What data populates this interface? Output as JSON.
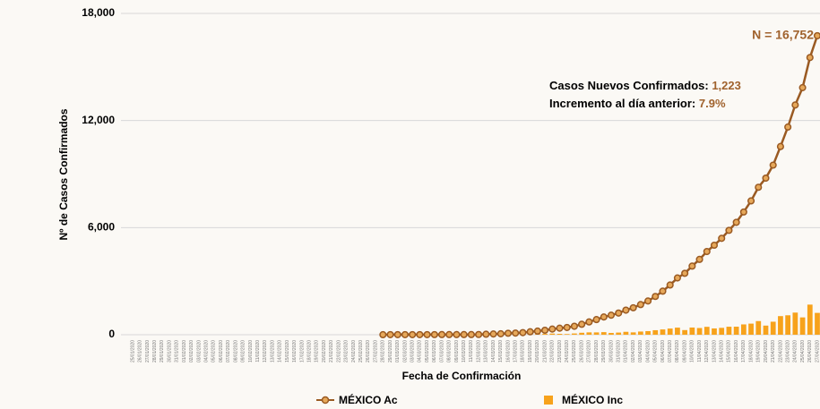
{
  "chart_data": {
    "type": "bar-line",
    "y_label": "Nº de Casos Confirmados",
    "x_label": "Fecha de Confirmación",
    "annotations": {
      "total": "N = 16,752",
      "new_label": "Casos Nuevos Confirmados:",
      "new_value": "1,223",
      "inc_label": "Incremento al día anterior:",
      "inc_value": "7.9%"
    },
    "categories": [
      "25/01/2020",
      "26/01/2020",
      "27/01/2020",
      "28/01/2020",
      "29/01/2020",
      "30/01/2020",
      "31/01/2020",
      "01/02/2020",
      "02/02/2020",
      "03/02/2020",
      "04/02/2020",
      "05/02/2020",
      "06/02/2020",
      "07/02/2020",
      "08/02/2020",
      "09/02/2020",
      "10/02/2020",
      "11/02/2020",
      "12/02/2020",
      "13/02/2020",
      "14/02/2020",
      "15/02/2020",
      "16/02/2020",
      "17/02/2020",
      "18/02/2020",
      "19/02/2020",
      "20/02/2020",
      "21/02/2020",
      "22/02/2020",
      "23/02/2020",
      "24/02/2020",
      "25/02/2020",
      "26/02/2020",
      "27/02/2020",
      "28/02/2020",
      "29/02/2020",
      "01/03/2020",
      "02/03/2020",
      "03/03/2020",
      "04/03/2020",
      "05/03/2020",
      "06/03/2020",
      "07/03/2020",
      "08/03/2020",
      "09/03/2020",
      "10/03/2020",
      "11/03/2020",
      "12/03/2020",
      "13/03/2020",
      "14/03/2020",
      "15/03/2020",
      "16/03/2020",
      "17/03/2020",
      "18/03/2020",
      "19/03/2020",
      "20/03/2020",
      "21/03/2020",
      "22/03/2020",
      "23/03/2020",
      "24/03/2020",
      "25/03/2020",
      "26/03/2020",
      "27/03/2020",
      "28/03/2020",
      "29/03/2020",
      "30/03/2020",
      "31/03/2020",
      "01/04/2020",
      "02/04/2020",
      "03/04/2020",
      "04/04/2020",
      "05/04/2020",
      "06/04/2020",
      "07/04/2020",
      "08/04/2020",
      "09/04/2020",
      "10/04/2020",
      "11/04/2020",
      "12/04/2020",
      "13/04/2020",
      "14/04/2020",
      "15/04/2020",
      "16/04/2020",
      "17/04/2020",
      "18/04/2020",
      "19/04/2020",
      "20/04/2020",
      "21/04/2020",
      "22/04/2020",
      "23/04/2020",
      "24/04/2020",
      "25/04/2020",
      "26/04/2020",
      "27/04/2020"
    ],
    "series": [
      {
        "name": "MÉXICO Inc",
        "type": "bar",
        "color": "#f7a21b",
        "values": [
          null,
          null,
          null,
          null,
          null,
          null,
          null,
          null,
          null,
          null,
          null,
          null,
          null,
          null,
          null,
          null,
          null,
          null,
          null,
          null,
          null,
          null,
          null,
          null,
          null,
          null,
          null,
          null,
          null,
          null,
          null,
          null,
          null,
          null,
          1,
          3,
          1,
          0,
          0,
          0,
          0,
          1,
          1,
          0,
          0,
          0,
          1,
          4,
          14,
          15,
          12,
          29,
          11,
          25,
          46,
          39,
          48,
          65,
          51,
          38,
          70,
          110,
          132,
          131,
          145,
          101,
          121,
          163,
          132,
          178,
          202,
          253,
          296,
          346,
          396,
          260,
          403,
          375,
          442,
          353,
          385,
          448,
          450,
          578,
          622,
          764,
          511,
          729,
          1043,
          1089,
          1239,
          970,
          1687,
          1223
        ]
      },
      {
        "name": "MÉXICO Ac",
        "type": "line",
        "color": "#9a5a22",
        "values": [
          null,
          null,
          null,
          null,
          null,
          null,
          null,
          null,
          null,
          null,
          null,
          null,
          null,
          null,
          null,
          null,
          null,
          null,
          null,
          null,
          null,
          null,
          null,
          null,
          null,
          null,
          null,
          null,
          null,
          null,
          null,
          null,
          null,
          null,
          1,
          4,
          5,
          5,
          5,
          5,
          5,
          6,
          7,
          7,
          7,
          7,
          8,
          12,
          26,
          41,
          53,
          82,
          93,
          118,
          164,
          203,
          251,
          316,
          367,
          405,
          475,
          585,
          717,
          848,
          993,
          1094,
          1215,
          1378,
          1510,
          1688,
          1890,
          2143,
          2439,
          2785,
          3181,
          3441,
          3844,
          4219,
          4661,
          5014,
          5399,
          5847,
          6297,
          6875,
          7497,
          8261,
          8772,
          9501,
          10544,
          11633,
          12872,
          13842,
          15529,
          16752
        ]
      }
    ],
    "ylim": [
      0,
      18000
    ],
    "yticks": [
      0,
      {
        "value": 6000,
        "label": "6,000"
      },
      {
        "value": 12000,
        "label": "12,000"
      },
      {
        "value": 18000,
        "label": "18,000"
      }
    ],
    "grid": true
  }
}
